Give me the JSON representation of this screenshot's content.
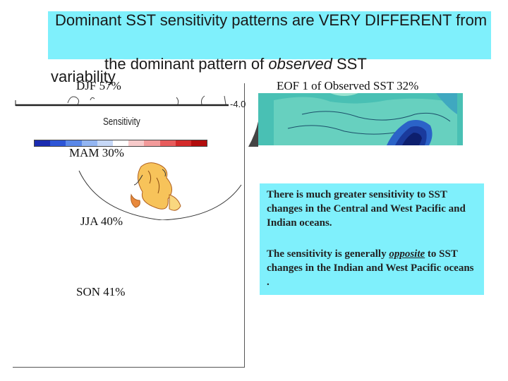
{
  "title": {
    "line1": "Dominant SST sensitivity patterns are VERY DIFFERENT  from",
    "line2_prefix": "the dominant pattern of ",
    "line2_italic": "observed",
    "line2_suffix": " SST",
    "line3": "variability"
  },
  "left_panel": {
    "djf_label": "DJF  57%",
    "axis_tick": "-4.0",
    "colorbar_label": "Sensitivity",
    "colorbar_colors": [
      "#1a2bb0",
      "#2d55d6",
      "#5a88e8",
      "#93b6f2",
      "#c6d8f7",
      "#ffffff",
      "#f7caca",
      "#f29a9a",
      "#e85c5c",
      "#d42a2a",
      "#b30d0d"
    ],
    "mam_label": "MAM  30%",
    "jja_label": "JJA  40%",
    "son_label": "SON  41%"
  },
  "right_panel": {
    "eof_label": "EOF 1 of Observed SST   32%"
  },
  "info_box": {
    "para1": "There is much greater sensitivity to SST changes in the Central and West Pacific and Indian oceans.",
    "para2_prefix": "The sensitivity is generally ",
    "para2_italic": "opposite",
    "para2_suffix": " to SST  changes in the Indian and West  Pacific oceans ."
  }
}
